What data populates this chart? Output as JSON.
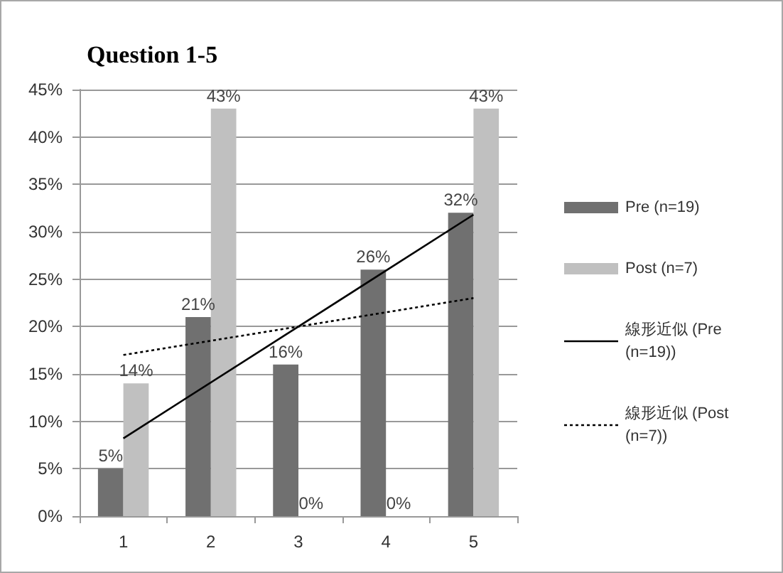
{
  "chart_data": {
    "type": "bar",
    "title": "Question 1-5",
    "categories": [
      "1",
      "2",
      "3",
      "4",
      "5"
    ],
    "series": [
      {
        "name": "Pre (n=19)",
        "color": "#707070",
        "values": [
          5,
          21,
          16,
          26,
          32
        ],
        "value_labels": [
          "5%",
          "21%",
          "16%",
          "26%",
          "32%"
        ]
      },
      {
        "name": "Post (n=7)",
        "color": "#c0c0c0",
        "values": [
          14,
          43,
          0,
          0,
          43
        ],
        "value_labels": [
          "14%",
          "43%",
          "0%",
          "0%",
          "43%"
        ]
      },
      {
        "name": "線形近似 (Pre (n=19))",
        "type": "line",
        "color": "#000000",
        "x": [
          "1",
          "5"
        ],
        "values": [
          8.2,
          31.8
        ],
        "line_style": "solid"
      },
      {
        "name": "線形近似 (Post (n=7))",
        "type": "line",
        "color": "#000000",
        "x": [
          "1",
          "5"
        ],
        "values": [
          17,
          23
        ],
        "line_style": "dotted"
      }
    ],
    "ylim": [
      0,
      45
    ],
    "yticks": [
      {
        "value": 0,
        "label": "0%"
      },
      {
        "value": 5,
        "label": "5%"
      },
      {
        "value": 10,
        "label": "10%"
      },
      {
        "value": 15,
        "label": "15%"
      },
      {
        "value": 20,
        "label": "20%"
      },
      {
        "value": 25,
        "label": "25%"
      },
      {
        "value": 30,
        "label": "30%"
      },
      {
        "value": 35,
        "label": "35%"
      },
      {
        "value": 40,
        "label": "40%"
      },
      {
        "value": 45,
        "label": "45%"
      }
    ],
    "grid": "y",
    "legend": "right",
    "marker": "none"
  }
}
